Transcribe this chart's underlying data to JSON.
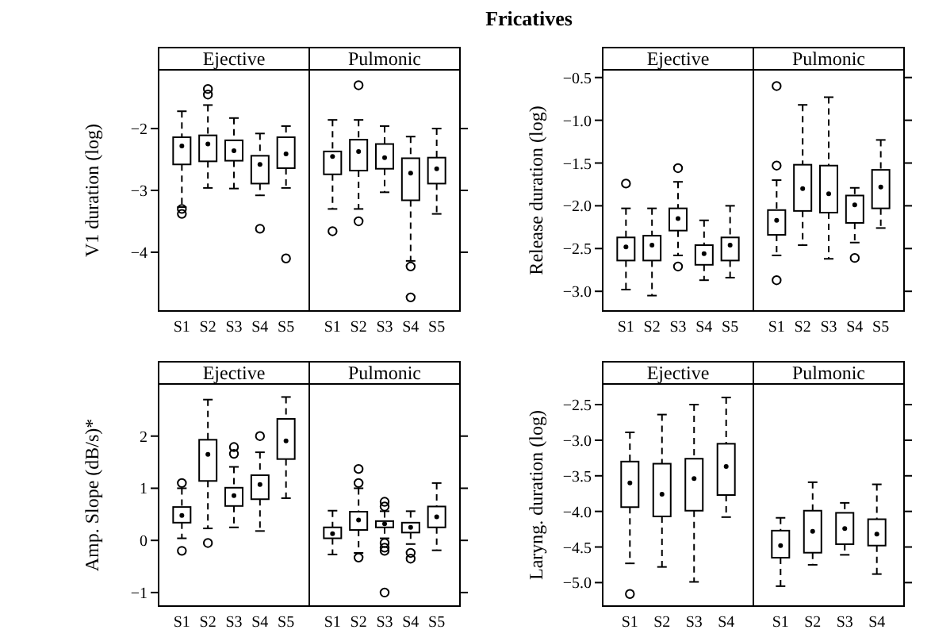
{
  "chart_data": [
    {
      "type": "box",
      "title": "Ejective",
      "annotations": [
        "Fricatives"
      ],
      "ylabel": "V1 duration (log)",
      "categories": [
        "S1",
        "S2",
        "S3",
        "S4",
        "S5"
      ],
      "ylim": [
        -4.95,
        -1.05
      ],
      "yticks": [
        {
          "value": -2,
          "label": "−2"
        },
        {
          "value": -3,
          "label": "−3"
        },
        {
          "value": -4,
          "label": "−4"
        }
      ],
      "boxes": [
        {
          "low": -3.27,
          "q1": -2.58,
          "median": -2.28,
          "q3": -2.14,
          "high": -1.72,
          "outliers": [
            -3.3,
            -3.38
          ]
        },
        {
          "low": -2.96,
          "q1": -2.53,
          "median": -2.25,
          "q3": -2.11,
          "high": -1.62,
          "outliers": [
            -1.36,
            -1.45
          ]
        },
        {
          "low": -2.97,
          "q1": -2.52,
          "median": -2.36,
          "q3": -2.19,
          "high": -1.83
        },
        {
          "low": -3.08,
          "q1": -2.89,
          "median": -2.58,
          "q3": -2.44,
          "high": -2.08,
          "outliers": [
            -3.62
          ]
        },
        {
          "low": -2.96,
          "q1": -2.64,
          "median": -2.41,
          "q3": -2.14,
          "high": -1.96,
          "outliers": [
            -4.1
          ]
        }
      ]
    },
    {
      "type": "box",
      "title": "Pulmonic",
      "tick_labels": "x",
      "categories": [
        "S1",
        "S2",
        "S3",
        "S4",
        "S5"
      ],
      "ylim": [
        -4.95,
        -1.05
      ],
      "yticks": [
        {
          "value": -2,
          "label": null
        },
        {
          "value": -3,
          "label": null
        },
        {
          "value": -4,
          "label": null
        }
      ],
      "boxes": [
        {
          "low": -3.3,
          "q1": -2.74,
          "median": -2.45,
          "q3": -2.37,
          "high": -1.86,
          "outliers": [
            -3.66
          ]
        },
        {
          "low": -3.3,
          "q1": -2.68,
          "median": -2.37,
          "q3": -2.18,
          "high": -1.86,
          "outliers": [
            -1.3,
            -3.5
          ]
        },
        {
          "low": -3.03,
          "q1": -2.65,
          "median": -2.47,
          "q3": -2.25,
          "high": -1.96
        },
        {
          "low": -4.14,
          "q1": -3.16,
          "median": -2.72,
          "q3": -2.48,
          "high": -2.13,
          "outliers": [
            -4.23,
            -4.73
          ]
        },
        {
          "low": -3.38,
          "q1": -2.89,
          "median": -2.65,
          "q3": -2.47,
          "high": -2.0
        }
      ]
    },
    {
      "type": "box",
      "title": "Ejective",
      "ylabel": "Release duration (log)",
      "categories": [
        "S1",
        "S2",
        "S3",
        "S4",
        "S5"
      ],
      "ylim": [
        -3.23,
        -0.41
      ],
      "yticks": [
        {
          "value": -0.5,
          "label": "−0.5"
        },
        {
          "value": -1,
          "label": "−1.0"
        },
        {
          "value": -1.5,
          "label": "−1.5"
        },
        {
          "value": -2,
          "label": "−2.0"
        },
        {
          "value": -2.5,
          "label": "−2.5"
        },
        {
          "value": -3,
          "label": "−3.0"
        }
      ],
      "boxes": [
        {
          "low": -2.98,
          "q1": -2.64,
          "median": -2.48,
          "q3": -2.37,
          "high": -2.03,
          "outliers": [
            -1.74
          ]
        },
        {
          "low": -3.05,
          "q1": -2.64,
          "median": -2.46,
          "q3": -2.35,
          "high": -2.03
        },
        {
          "low": -2.58,
          "q1": -2.29,
          "median": -2.15,
          "q3": -2.03,
          "high": -1.72,
          "outliers": [
            -1.56,
            -2.71
          ]
        },
        {
          "low": -2.87,
          "q1": -2.69,
          "median": -2.56,
          "q3": -2.46,
          "high": -2.17
        },
        {
          "low": -2.84,
          "q1": -2.64,
          "median": -2.46,
          "q3": -2.37,
          "high": -2.0
        }
      ]
    },
    {
      "type": "box",
      "title": "Pulmonic",
      "tick_labels": "x",
      "categories": [
        "S1",
        "S2",
        "S3",
        "S4",
        "S5"
      ],
      "ylim": [
        -3.23,
        -0.41
      ],
      "yticks": [
        {
          "value": -0.5,
          "label": null
        },
        {
          "value": -1,
          "label": null
        },
        {
          "value": -1.5,
          "label": null
        },
        {
          "value": -2,
          "label": null
        },
        {
          "value": -2.5,
          "label": null
        },
        {
          "value": -3,
          "label": null
        }
      ],
      "boxes": [
        {
          "low": -2.58,
          "q1": -2.34,
          "median": -2.17,
          "q3": -2.05,
          "high": -1.7,
          "outliers": [
            -0.6,
            -1.53,
            -2.87
          ]
        },
        {
          "low": -2.46,
          "q1": -2.06,
          "median": -1.8,
          "q3": -1.52,
          "high": -0.82
        },
        {
          "low": -2.62,
          "q1": -2.08,
          "median": -1.86,
          "q3": -1.53,
          "high": -0.73
        },
        {
          "low": -2.43,
          "q1": -2.2,
          "median": -1.99,
          "q3": -1.88,
          "high": -1.79,
          "outliers": [
            -2.61
          ]
        },
        {
          "low": -2.26,
          "q1": -2.03,
          "median": -1.78,
          "q3": -1.58,
          "high": -1.23
        }
      ]
    },
    {
      "type": "box",
      "title": "Ejective",
      "ylabel": "Amp. Slope (dB/s)*",
      "categories": [
        "S1",
        "S2",
        "S3",
        "S4",
        "S5"
      ],
      "ylim": [
        -1.26,
        3.0
      ],
      "yticks": [
        {
          "value": -1,
          "label": "−1"
        },
        0,
        1,
        2
      ],
      "boxes": [
        {
          "low": 0.04,
          "q1": 0.34,
          "median": 0.48,
          "q3": 0.64,
          "high": 1.0,
          "outliers": [
            1.1,
            -0.2
          ]
        },
        {
          "low": 0.23,
          "q1": 1.14,
          "median": 1.65,
          "q3": 1.93,
          "high": 2.7,
          "outliers": [
            -0.05
          ]
        },
        {
          "low": 0.25,
          "q1": 0.66,
          "median": 0.86,
          "q3": 1.01,
          "high": 1.41,
          "outliers": [
            1.79,
            1.66
          ]
        },
        {
          "low": 0.18,
          "q1": 0.79,
          "median": 1.07,
          "q3": 1.25,
          "high": 1.69,
          "outliers": [
            2.0
          ]
        },
        {
          "low": 0.81,
          "q1": 1.56,
          "median": 1.91,
          "q3": 2.33,
          "high": 2.75
        }
      ]
    },
    {
      "type": "box",
      "title": "Pulmonic",
      "tick_labels": "x",
      "categories": [
        "S1",
        "S2",
        "S3",
        "S4",
        "S5"
      ],
      "ylim": [
        -1.26,
        3.0
      ],
      "yticks": [
        {
          "value": -1,
          "label": null
        },
        {
          "value": 0,
          "label": null
        },
        {
          "value": 1,
          "label": null
        },
        {
          "value": 2,
          "label": null
        }
      ],
      "boxes": [
        {
          "low": -0.27,
          "q1": 0.04,
          "median": 0.13,
          "q3": 0.25,
          "high": 0.57
        },
        {
          "low": -0.24,
          "q1": 0.2,
          "median": 0.39,
          "q3": 0.55,
          "high": 1.0,
          "outliers": [
            1.37,
            1.1,
            -0.33
          ]
        },
        {
          "low": 0.04,
          "q1": 0.25,
          "median": 0.32,
          "q3": 0.37,
          "high": 0.56,
          "outliers": [
            0.74,
            0.65,
            -0.05,
            -0.14,
            -0.2,
            -1.0
          ]
        },
        {
          "low": -0.07,
          "q1": 0.15,
          "median": 0.25,
          "q3": 0.34,
          "high": 0.56,
          "outliers": [
            -0.24,
            -0.35
          ]
        },
        {
          "low": -0.19,
          "q1": 0.25,
          "median": 0.45,
          "q3": 0.65,
          "high": 1.1
        }
      ]
    },
    {
      "type": "box",
      "title": "Ejective",
      "ylabel": "Laryng. duration (log)",
      "categories": [
        "S1",
        "S2",
        "S3",
        "S4"
      ],
      "ylim": [
        -5.33,
        -2.21
      ],
      "yticks": [
        {
          "value": -2.5,
          "label": "−2.5"
        },
        {
          "value": -3,
          "label": "−3.0"
        },
        {
          "value": -3.5,
          "label": "−3.5"
        },
        {
          "value": -4,
          "label": "−4.0"
        },
        {
          "value": -4.5,
          "label": "−4.5"
        },
        {
          "value": -5,
          "label": "−5.0"
        }
      ],
      "boxes": [
        {
          "low": -4.73,
          "q1": -3.94,
          "median": -3.6,
          "q3": -3.3,
          "high": -2.89,
          "outliers": [
            -5.16
          ]
        },
        {
          "low": -4.78,
          "q1": -4.07,
          "median": -3.76,
          "q3": -3.33,
          "high": -2.64
        },
        {
          "low": -4.99,
          "q1": -3.99,
          "median": -3.54,
          "q3": -3.26,
          "high": -2.5
        },
        {
          "low": -4.08,
          "q1": -3.77,
          "median": -3.37,
          "q3": -3.05,
          "high": -2.4
        }
      ]
    },
    {
      "type": "box",
      "title": "Pulmonic",
      "tick_labels": "x",
      "categories": [
        "S1",
        "S2",
        "S3",
        "S4"
      ],
      "ylim": [
        -5.33,
        -2.21
      ],
      "yticks": [
        {
          "value": -2.5,
          "label": null
        },
        {
          "value": -3,
          "label": null
        },
        {
          "value": -3.5,
          "label": null
        },
        {
          "value": -4,
          "label": null
        },
        {
          "value": -4.5,
          "label": null
        },
        {
          "value": -5,
          "label": null
        }
      ],
      "boxes": [
        {
          "low": -5.05,
          "q1": -4.65,
          "median": -4.48,
          "q3": -4.27,
          "high": -4.09
        },
        {
          "low": -4.75,
          "q1": -4.58,
          "median": -4.28,
          "q3": -3.99,
          "high": -3.59
        },
        {
          "low": -4.61,
          "q1": -4.46,
          "median": -4.24,
          "q3": -4.02,
          "high": -3.88
        },
        {
          "low": -4.88,
          "q1": -4.48,
          "median": -4.32,
          "q3": -4.11,
          "high": -3.62
        }
      ]
    }
  ]
}
